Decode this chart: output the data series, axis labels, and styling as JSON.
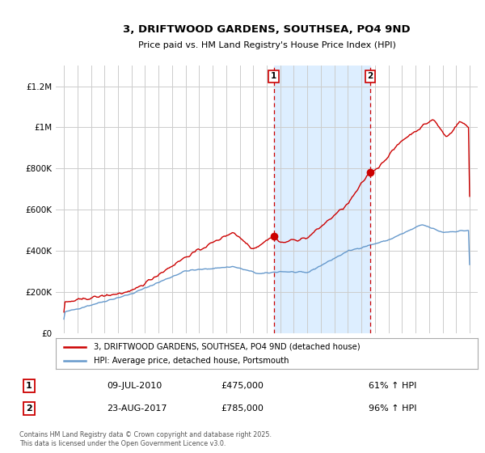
{
  "title": "3, DRIFTWOOD GARDENS, SOUTHSEA, PO4 9ND",
  "subtitle": "Price paid vs. HM Land Registry's House Price Index (HPI)",
  "legend_label_red": "3, DRIFTWOOD GARDENS, SOUTHSEA, PO4 9ND (detached house)",
  "legend_label_blue": "HPI: Average price, detached house, Portsmouth",
  "transaction1_date": "09-JUL-2010",
  "transaction1_price": "£475,000",
  "transaction1_hpi": "61% ↑ HPI",
  "transaction2_date": "23-AUG-2017",
  "transaction2_price": "£785,000",
  "transaction2_hpi": "96% ↑ HPI",
  "footer": "Contains HM Land Registry data © Crown copyright and database right 2025.\nThis data is licensed under the Open Government Licence v3.0.",
  "red_color": "#cc0000",
  "blue_color": "#6699cc",
  "bg_color": "#ffffff",
  "grid_color": "#cccccc",
  "shade_color": "#ddeeff",
  "ylim": [
    0,
    1300000
  ],
  "yticks": [
    0,
    200000,
    400000,
    600000,
    800000,
    1000000,
    1200000
  ],
  "ytick_labels": [
    "£0",
    "£200K",
    "£400K",
    "£600K",
    "£800K",
    "£1M",
    "£1.2M"
  ],
  "transaction1_x": 2010.52,
  "transaction2_x": 2017.64
}
